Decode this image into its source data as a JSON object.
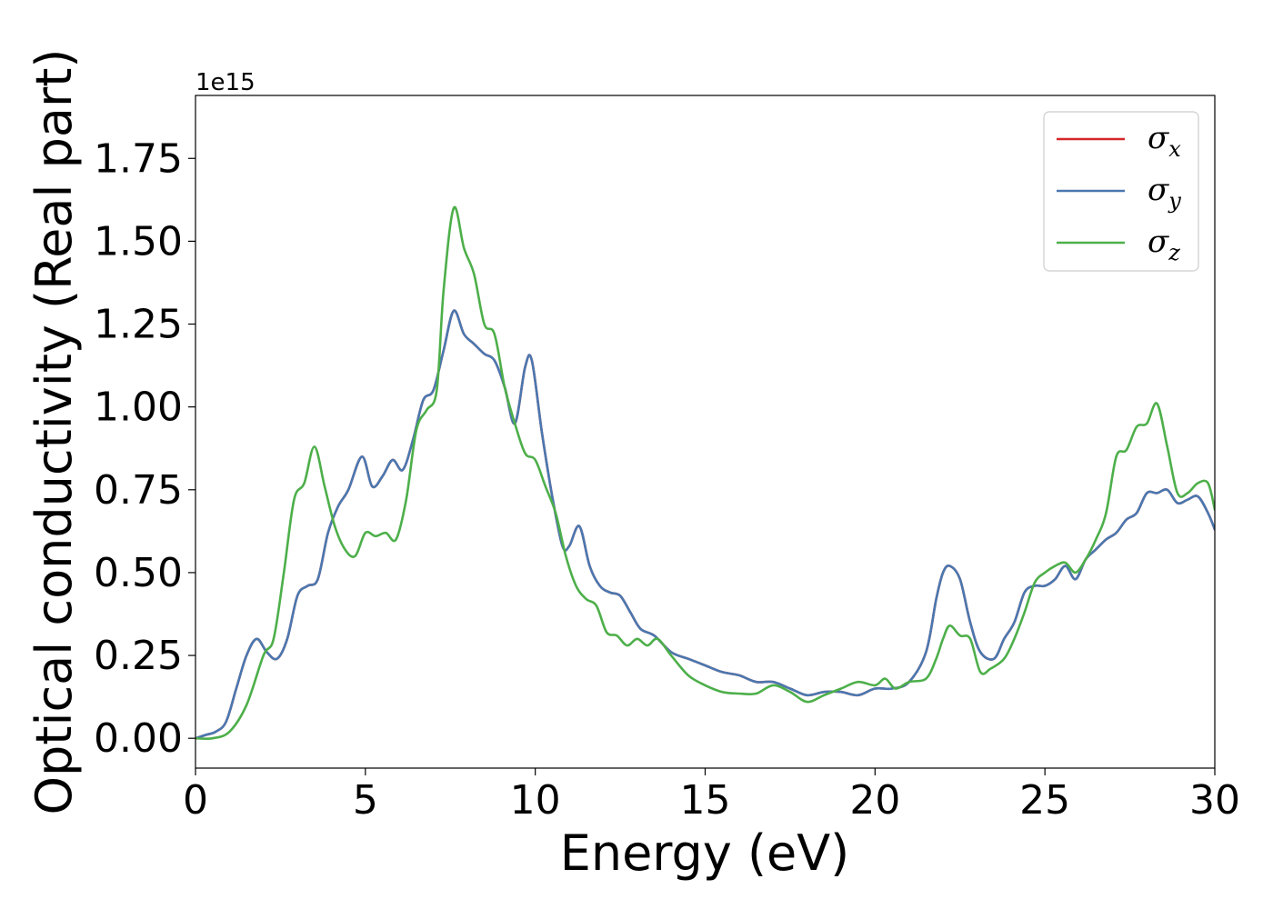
{
  "chart_data": {
    "type": "line",
    "xlabel": "Energy (eV)",
    "ylabel": "Optical conductivity (Real part)",
    "y_offset_label": "1e15",
    "xlim": [
      0,
      30
    ],
    "ylim": [
      -0.09,
      1.94
    ],
    "x_ticks": [
      0,
      5,
      10,
      15,
      20,
      25,
      30
    ],
    "x_tick_labels": [
      "0",
      "5",
      "10",
      "15",
      "20",
      "25",
      "30"
    ],
    "y_ticks": [
      0.0,
      0.25,
      0.5,
      0.75,
      1.0,
      1.25,
      1.5,
      1.75
    ],
    "y_tick_labels": [
      "0.00",
      "0.25",
      "0.50",
      "0.75",
      "1.00",
      "1.25",
      "1.50",
      "1.75"
    ],
    "grid": false,
    "legend_position": "top-right",
    "series": [
      {
        "name": "σx",
        "legend_symbol": "σ",
        "legend_sub": "x",
        "color": "#d62728",
        "x": [
          0,
          0.3,
          0.6,
          0.9,
          1.2,
          1.5,
          1.8,
          2.1,
          2.4,
          2.7,
          3.0,
          3.3,
          3.6,
          3.9,
          4.2,
          4.5,
          4.9,
          5.2,
          5.5,
          5.8,
          6.1,
          6.4,
          6.7,
          7.0,
          7.3,
          7.6,
          7.9,
          8.2,
          8.5,
          8.8,
          9.1,
          9.4,
          9.7,
          9.9,
          10.2,
          10.5,
          10.8,
          11.0,
          11.3,
          11.6,
          11.9,
          12.2,
          12.5,
          12.8,
          13.1,
          13.5,
          14.0,
          14.5,
          15.0,
          15.5,
          16.0,
          16.5,
          17.0,
          17.5,
          18.0,
          18.5,
          19.0,
          19.5,
          20.0,
          20.5,
          21.0,
          21.5,
          21.8,
          22.0,
          22.2,
          22.5,
          22.8,
          23.1,
          23.5,
          23.8,
          24.1,
          24.4,
          24.7,
          25.0,
          25.3,
          25.6,
          25.9,
          26.2,
          26.5,
          26.8,
          27.1,
          27.4,
          27.7,
          28.0,
          28.3,
          28.6,
          28.9,
          29.2,
          29.5,
          29.8,
          30.0
        ],
        "values": [
          0.0,
          0.01,
          0.02,
          0.05,
          0.15,
          0.25,
          0.3,
          0.26,
          0.24,
          0.3,
          0.43,
          0.46,
          0.48,
          0.62,
          0.7,
          0.75,
          0.85,
          0.76,
          0.79,
          0.84,
          0.81,
          0.9,
          1.02,
          1.05,
          1.17,
          1.29,
          1.22,
          1.19,
          1.16,
          1.14,
          1.06,
          0.95,
          1.12,
          1.14,
          0.92,
          0.73,
          0.58,
          0.58,
          0.64,
          0.52,
          0.46,
          0.44,
          0.43,
          0.38,
          0.33,
          0.31,
          0.26,
          0.24,
          0.22,
          0.2,
          0.19,
          0.17,
          0.17,
          0.15,
          0.13,
          0.14,
          0.14,
          0.13,
          0.15,
          0.15,
          0.17,
          0.26,
          0.42,
          0.5,
          0.52,
          0.48,
          0.35,
          0.26,
          0.24,
          0.3,
          0.35,
          0.44,
          0.46,
          0.46,
          0.48,
          0.52,
          0.48,
          0.54,
          0.57,
          0.6,
          0.62,
          0.66,
          0.68,
          0.74,
          0.74,
          0.75,
          0.71,
          0.72,
          0.73,
          0.68,
          0.63
        ]
      },
      {
        "name": "σy",
        "legend_symbol": "σ",
        "legend_sub": "y",
        "color": "#4a78b0",
        "x": [
          0,
          0.3,
          0.6,
          0.9,
          1.2,
          1.5,
          1.8,
          2.1,
          2.4,
          2.7,
          3.0,
          3.3,
          3.6,
          3.9,
          4.2,
          4.5,
          4.9,
          5.2,
          5.5,
          5.8,
          6.1,
          6.4,
          6.7,
          7.0,
          7.3,
          7.6,
          7.9,
          8.2,
          8.5,
          8.8,
          9.1,
          9.4,
          9.7,
          9.9,
          10.2,
          10.5,
          10.8,
          11.0,
          11.3,
          11.6,
          11.9,
          12.2,
          12.5,
          12.8,
          13.1,
          13.5,
          14.0,
          14.5,
          15.0,
          15.5,
          16.0,
          16.5,
          17.0,
          17.5,
          18.0,
          18.5,
          19.0,
          19.5,
          20.0,
          20.5,
          21.0,
          21.5,
          21.8,
          22.0,
          22.2,
          22.5,
          22.8,
          23.1,
          23.5,
          23.8,
          24.1,
          24.4,
          24.7,
          25.0,
          25.3,
          25.6,
          25.9,
          26.2,
          26.5,
          26.8,
          27.1,
          27.4,
          27.7,
          28.0,
          28.3,
          28.6,
          28.9,
          29.2,
          29.5,
          29.8,
          30.0
        ],
        "values": [
          0.0,
          0.01,
          0.02,
          0.05,
          0.15,
          0.25,
          0.3,
          0.26,
          0.24,
          0.3,
          0.43,
          0.46,
          0.48,
          0.62,
          0.7,
          0.75,
          0.85,
          0.76,
          0.79,
          0.84,
          0.81,
          0.9,
          1.02,
          1.05,
          1.17,
          1.29,
          1.22,
          1.19,
          1.16,
          1.14,
          1.06,
          0.95,
          1.12,
          1.14,
          0.92,
          0.73,
          0.58,
          0.58,
          0.64,
          0.52,
          0.46,
          0.44,
          0.43,
          0.38,
          0.33,
          0.31,
          0.26,
          0.24,
          0.22,
          0.2,
          0.19,
          0.17,
          0.17,
          0.15,
          0.13,
          0.14,
          0.14,
          0.13,
          0.15,
          0.15,
          0.17,
          0.26,
          0.42,
          0.5,
          0.52,
          0.48,
          0.35,
          0.26,
          0.24,
          0.3,
          0.35,
          0.44,
          0.46,
          0.46,
          0.48,
          0.52,
          0.48,
          0.54,
          0.57,
          0.6,
          0.62,
          0.66,
          0.68,
          0.74,
          0.74,
          0.75,
          0.71,
          0.72,
          0.73,
          0.68,
          0.63
        ]
      },
      {
        "name": "σz",
        "legend_symbol": "σ",
        "legend_sub": "z",
        "color": "#4daf4a",
        "x": [
          0,
          0.5,
          1.0,
          1.5,
          2.0,
          2.3,
          2.6,
          2.9,
          3.2,
          3.5,
          3.8,
          4.1,
          4.4,
          4.7,
          5.0,
          5.3,
          5.6,
          5.9,
          6.2,
          6.5,
          6.8,
          7.1,
          7.3,
          7.6,
          7.9,
          8.2,
          8.5,
          8.8,
          9.1,
          9.4,
          9.7,
          10.0,
          10.3,
          10.6,
          10.9,
          11.2,
          11.5,
          11.8,
          12.1,
          12.4,
          12.7,
          13.0,
          13.3,
          13.6,
          14.0,
          14.5,
          15.0,
          15.5,
          16.0,
          16.5,
          17.0,
          17.5,
          18.0,
          18.5,
          19.0,
          19.5,
          20.0,
          20.3,
          20.6,
          21.0,
          21.5,
          21.8,
          22.0,
          22.2,
          22.5,
          22.8,
          23.1,
          23.4,
          23.8,
          24.1,
          24.4,
          24.7,
          25.0,
          25.3,
          25.6,
          25.9,
          26.2,
          26.5,
          26.8,
          27.1,
          27.4,
          27.7,
          28.0,
          28.3,
          28.6,
          28.9,
          29.2,
          29.5,
          29.8,
          30.0
        ],
        "values": [
          0.0,
          0.0,
          0.02,
          0.1,
          0.25,
          0.3,
          0.5,
          0.72,
          0.77,
          0.88,
          0.76,
          0.64,
          0.57,
          0.55,
          0.62,
          0.61,
          0.62,
          0.6,
          0.72,
          0.93,
          0.99,
          1.05,
          1.35,
          1.6,
          1.48,
          1.4,
          1.25,
          1.22,
          1.06,
          0.95,
          0.86,
          0.84,
          0.76,
          0.68,
          0.55,
          0.46,
          0.42,
          0.4,
          0.32,
          0.31,
          0.28,
          0.3,
          0.28,
          0.3,
          0.25,
          0.19,
          0.16,
          0.14,
          0.135,
          0.135,
          0.16,
          0.14,
          0.11,
          0.13,
          0.15,
          0.17,
          0.16,
          0.18,
          0.15,
          0.17,
          0.18,
          0.24,
          0.3,
          0.34,
          0.31,
          0.3,
          0.2,
          0.21,
          0.24,
          0.3,
          0.38,
          0.47,
          0.5,
          0.52,
          0.53,
          0.5,
          0.54,
          0.6,
          0.68,
          0.85,
          0.87,
          0.94,
          0.95,
          1.01,
          0.88,
          0.74,
          0.74,
          0.77,
          0.77,
          0.69
        ]
      }
    ]
  }
}
